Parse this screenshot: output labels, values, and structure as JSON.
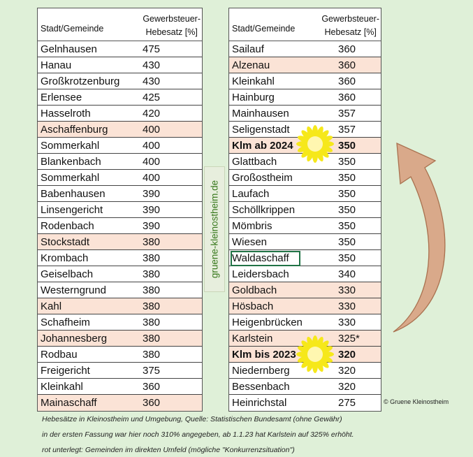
{
  "left_table": {
    "header": {
      "col1": "Stadt/Gemeinde",
      "col2_line1": "Gewerbsteuer-",
      "col2_line2": "Hebesatz [%]"
    },
    "rows": [
      {
        "name": "Gelnhausen",
        "value": "475",
        "highlight": false
      },
      {
        "name": "Hanau",
        "value": "430",
        "highlight": false
      },
      {
        "name": "Großkrotzenburg",
        "value": "430",
        "highlight": false
      },
      {
        "name": "Erlensee",
        "value": "425",
        "highlight": false
      },
      {
        "name": "Hasselroth",
        "value": "420",
        "highlight": false
      },
      {
        "name": "Aschaffenburg",
        "value": "400",
        "highlight": true
      },
      {
        "name": "Sommerkahl",
        "value": "400",
        "highlight": false
      },
      {
        "name": "Blankenbach",
        "value": "400",
        "highlight": false
      },
      {
        "name": "Sommerkahl",
        "value": "400",
        "highlight": false
      },
      {
        "name": "Babenhausen",
        "value": "390",
        "highlight": false
      },
      {
        "name": "Linsengericht",
        "value": "390",
        "highlight": false
      },
      {
        "name": "Rodenbach",
        "value": "390",
        "highlight": false
      },
      {
        "name": "Stockstadt",
        "value": "380",
        "highlight": true
      },
      {
        "name": "Krombach",
        "value": "380",
        "highlight": false
      },
      {
        "name": "Geiselbach",
        "value": "380",
        "highlight": false
      },
      {
        "name": "Westerngrund",
        "value": "380",
        "highlight": false
      },
      {
        "name": "Kahl",
        "value": "380",
        "highlight": true
      },
      {
        "name": "Schafheim",
        "value": "380",
        "highlight": false
      },
      {
        "name": "Johannesberg",
        "value": "380",
        "highlight": true
      },
      {
        "name": "Rodbau",
        "value": "380",
        "highlight": false
      },
      {
        "name": "Freigericht",
        "value": "375",
        "highlight": false
      },
      {
        "name": "Kleinkahl",
        "value": "360",
        "highlight": false
      },
      {
        "name": "Mainaschaff",
        "value": "360",
        "highlight": true
      }
    ]
  },
  "right_table": {
    "header": {
      "col1": "Stadt/Gemeinde",
      "col2_line1": "Gewerbsteuer-",
      "col2_line2": "Hebesatz [%]"
    },
    "rows": [
      {
        "name": "Sailauf",
        "value": "360",
        "highlight": false,
        "bold": false
      },
      {
        "name": "Alzenau",
        "value": "360",
        "highlight": true,
        "bold": false
      },
      {
        "name": "Kleinkahl",
        "value": "360",
        "highlight": false,
        "bold": false
      },
      {
        "name": "Hainburg",
        "value": "360",
        "highlight": false,
        "bold": false
      },
      {
        "name": "Mainhausen",
        "value": "357",
        "highlight": false,
        "bold": false
      },
      {
        "name": "Seligenstadt",
        "value": "357",
        "highlight": false,
        "bold": false
      },
      {
        "name": "Klm ab 2024",
        "value": "350",
        "highlight": true,
        "bold": true
      },
      {
        "name": "Glattbach",
        "value": "350",
        "highlight": false,
        "bold": false
      },
      {
        "name": "Großostheim",
        "value": "350",
        "highlight": false,
        "bold": false
      },
      {
        "name": "Laufach",
        "value": "350",
        "highlight": false,
        "bold": false
      },
      {
        "name": "Schöllkrippen",
        "value": "350",
        "highlight": false,
        "bold": false
      },
      {
        "name": "Mömbris",
        "value": "350",
        "highlight": false,
        "bold": false
      },
      {
        "name": "Wiesen",
        "value": "350",
        "highlight": false,
        "bold": false
      },
      {
        "name": "Waldaschaff",
        "value": "350",
        "highlight": false,
        "bold": false,
        "selected": true
      },
      {
        "name": "Leidersbach",
        "value": "340",
        "highlight": false,
        "bold": false
      },
      {
        "name": "Goldbach",
        "value": "330",
        "highlight": true,
        "bold": false
      },
      {
        "name": "Hösbach",
        "value": "330",
        "highlight": true,
        "bold": false
      },
      {
        "name": "Heigenbrücken",
        "value": "330",
        "highlight": false,
        "bold": false
      },
      {
        "name": "Karlstein",
        "value": "325*",
        "highlight": true,
        "bold": false
      },
      {
        "name": "Klm bis 2023",
        "value": "320",
        "highlight": true,
        "bold": true
      },
      {
        "name": "Niedernberg",
        "value": "320",
        "highlight": false,
        "bold": false
      },
      {
        "name": "Bessenbach",
        "value": "320",
        "highlight": false,
        "bold": false
      },
      {
        "name": "Heinrichstal",
        "value": "275",
        "highlight": false,
        "bold": false
      }
    ]
  },
  "vertical_label": "gruene-kleinostheim.de",
  "copyright": "© Gruene Kleinostheim",
  "notes": [
    "Hebesätze in Kleinostheim und Umgebung,   Quelle: Statistischen Bundesamt (ohne Gewähr)",
    "in der ersten Fassung war hier noch 310% angegeben, ab 1.1.23 hat Karlstein auf 325% erhöht.",
    "rot unterlegt: Gemeinden im direkten Umfeld (mögliche \"Konkurrenzsituation\")"
  ],
  "colors": {
    "highlight_row": "#fbe3d6",
    "background": "#dff0d8",
    "sun": "#f6e81a",
    "arrow": "#d9a98a"
  }
}
